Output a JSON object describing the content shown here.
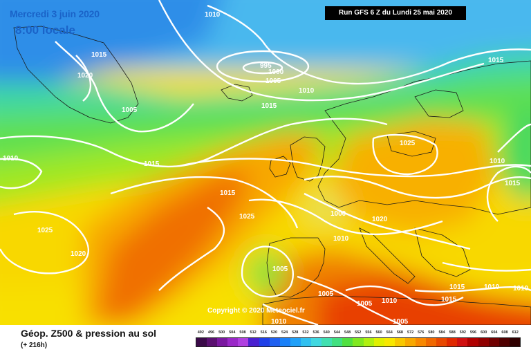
{
  "header": {
    "date": "Mercredi 3 juin 2020",
    "time": "8:00 locale",
    "run": "Run GFS 6 Z du Lundi 25 mai 2020"
  },
  "copyright": "Copyright © 2020 Meteociel.fr",
  "footer": {
    "title": "Géop. Z500 & pression au sol",
    "subtitle": "(+ 216h)"
  },
  "isobar_labels": [
    "1010",
    "995",
    "1000",
    "1005",
    "1015",
    "1020",
    "1005",
    "1010",
    "1015",
    "1015",
    "1015",
    "1025",
    "1025",
    "1010",
    "1020",
    "1025",
    "1020",
    "1015",
    "1010",
    "1005",
    "1005",
    "1005",
    "1005",
    "1010",
    "1010",
    "1015",
    "1015",
    "1010",
    "1015",
    "1010",
    "1000",
    "1010"
  ],
  "legend": {
    "values": [
      "492",
      "496",
      "500",
      "504",
      "508",
      "512",
      "516",
      "520",
      "524",
      "528",
      "532",
      "536",
      "540",
      "544",
      "548",
      "552",
      "556",
      "560",
      "564",
      "568",
      "572",
      "576",
      "580",
      "584",
      "588",
      "592",
      "596",
      "600",
      "604",
      "608",
      "612"
    ],
    "colors": [
      "#3a0a48",
      "#5a1070",
      "#7a18a0",
      "#9a28c8",
      "#b040e0",
      "#4a20d0",
      "#2040e8",
      "#2060f0",
      "#1a80f8",
      "#20a0f8",
      "#30c0f0",
      "#40d8e0",
      "#40e0b0",
      "#40e080",
      "#50e040",
      "#80e820",
      "#b0f010",
      "#e0f000",
      "#f8e800",
      "#f8c800",
      "#f8a800",
      "#f88800",
      "#f06800",
      "#e84800",
      "#e02800",
      "#d01010",
      "#b00000",
      "#900000",
      "#700000",
      "#500000",
      "#300000"
    ]
  },
  "colors": {
    "title_blue": "#1a63c8",
    "isobar": "#ffffff",
    "border": "#1a1a1a"
  }
}
